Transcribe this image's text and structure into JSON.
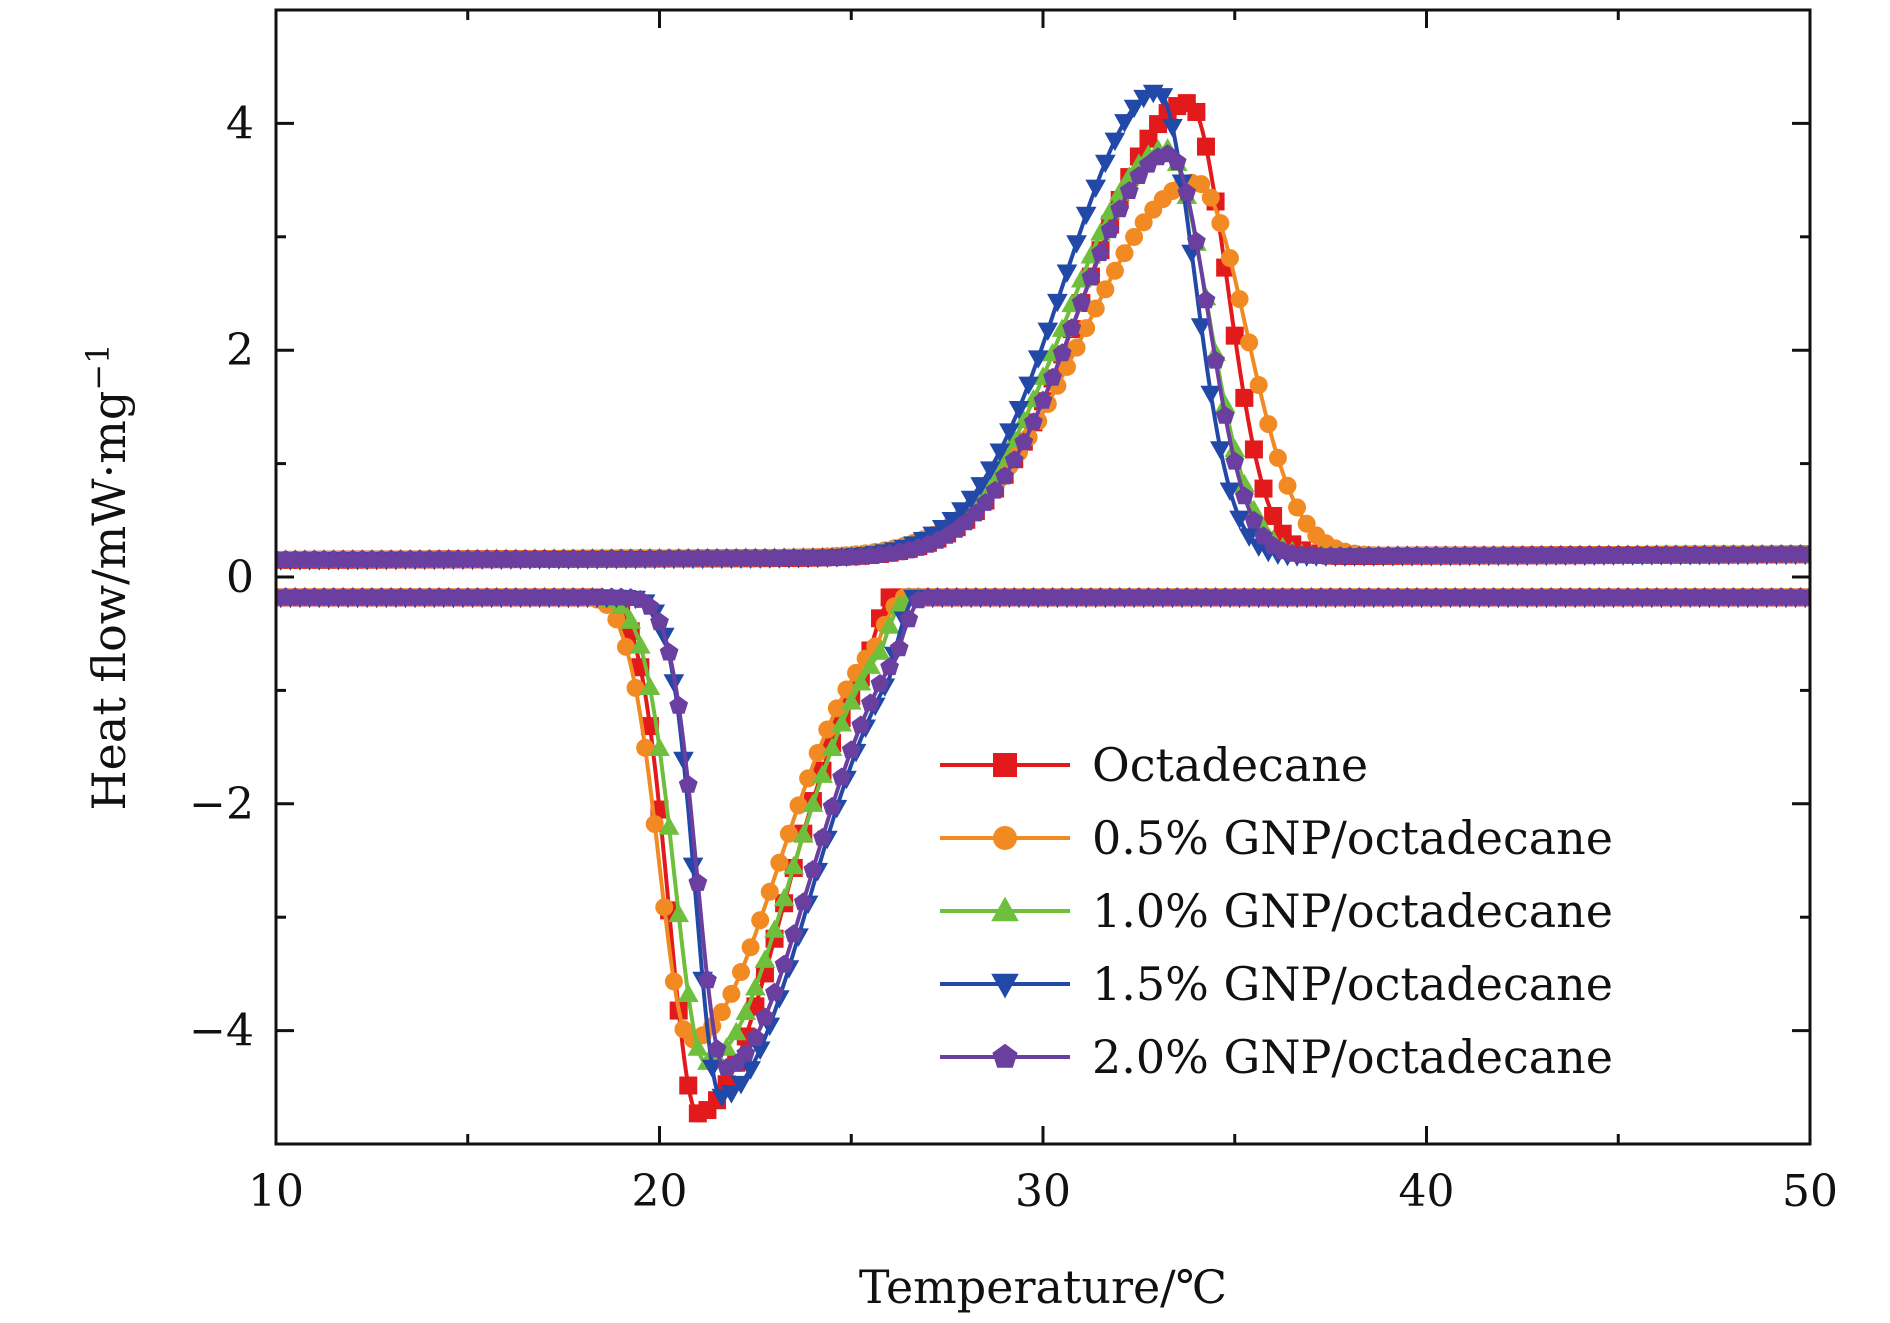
{
  "chart_data": {
    "type": "line",
    "xlabel": "Temperature/℃",
    "ylabel": "Heat flow/mW·mg",
    "ylabel_superscript": "−1",
    "xlim": [
      10,
      50
    ],
    "ylim": [
      -5,
      5
    ],
    "x_ticks": [
      10,
      20,
      30,
      40,
      50
    ],
    "x_tick_labels": [
      "10",
      "20",
      "30",
      "40",
      "50"
    ],
    "y_ticks": [
      -4,
      -2,
      0,
      2,
      4
    ],
    "y_tick_labels": [
      "−4",
      "−2",
      "0",
      "2",
      "4"
    ],
    "grid": false,
    "legend_position": "lower-right",
    "series": [
      {
        "name": "Octadecane",
        "color": "#e31a1c",
        "marker": "square",
        "heating": {
          "Tp": 33.8,
          "A": 4.0,
          "sigL": 2.6,
          "sigR": 1.0,
          "bStart": 0.15,
          "bEnd": 0.2
        },
        "cooling": {
          "Tp": 21.0,
          "A": 4.55,
          "sigL": 0.75,
          "sigR": 2.2,
          "onsetEnd": 18.0,
          "recover": 26.0,
          "base": -0.18
        }
      },
      {
        "name": "0.5% GNP/octadecane",
        "color": "#f28a24",
        "marker": "circle",
        "heating": {
          "Tp": 34.0,
          "A": 3.3,
          "sigL": 2.9,
          "sigR": 1.3,
          "bStart": 0.15,
          "bEnd": 0.2
        },
        "cooling": {
          "Tp": 20.8,
          "A": 3.9,
          "sigL": 0.8,
          "sigR": 2.3,
          "onsetEnd": 17.8,
          "recover": 26.3,
          "base": -0.18
        }
      },
      {
        "name": "1.0% GNP/octadecane",
        "color": "#6ebf3b",
        "marker": "triangle-up",
        "heating": {
          "Tp": 33.2,
          "A": 3.6,
          "sigL": 2.5,
          "sigR": 1.1,
          "bStart": 0.15,
          "bEnd": 0.2
        },
        "cooling": {
          "Tp": 21.2,
          "A": 4.1,
          "sigL": 0.8,
          "sigR": 2.2,
          "onsetEnd": 18.0,
          "recover": 26.4,
          "base": -0.18
        }
      },
      {
        "name": "1.5% GNP/octadecane",
        "color": "#2249a8",
        "marker": "triangle-down",
        "heating": {
          "Tp": 33.0,
          "A": 4.1,
          "sigL": 2.4,
          "sigR": 0.95,
          "bStart": 0.15,
          "bEnd": 0.2
        },
        "cooling": {
          "Tp": 21.6,
          "A": 4.4,
          "sigL": 0.65,
          "sigR": 2.3,
          "onsetEnd": 18.5,
          "recover": 26.6,
          "base": -0.18
        }
      },
      {
        "name": "2.0% GNP/octadecane",
        "color": "#6a3fa0",
        "marker": "pentagon",
        "heating": {
          "Tp": 33.3,
          "A": 3.55,
          "sigL": 2.4,
          "sigR": 1.0,
          "bStart": 0.15,
          "bEnd": 0.2
        },
        "cooling": {
          "Tp": 21.7,
          "A": 4.15,
          "sigL": 0.7,
          "sigR": 2.2,
          "onsetEnd": 18.6,
          "recover": 26.8,
          "base": -0.18
        }
      }
    ]
  }
}
